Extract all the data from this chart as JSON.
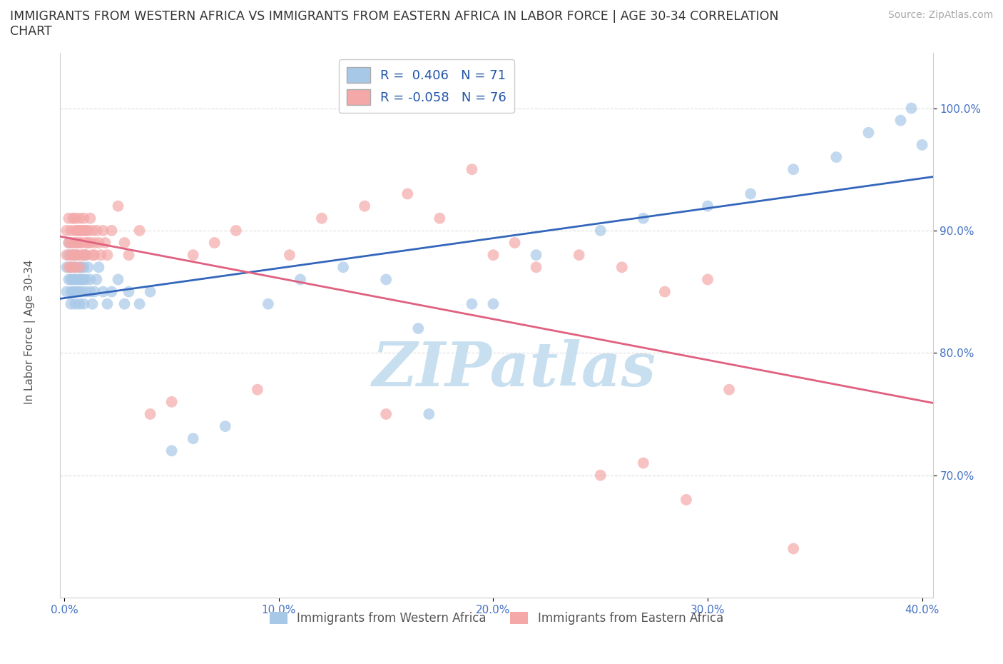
{
  "title_line1": "IMMIGRANTS FROM WESTERN AFRICA VS IMMIGRANTS FROM EASTERN AFRICA IN LABOR FORCE | AGE 30-34 CORRELATION",
  "title_line2": "CHART",
  "source_text": "Source: ZipAtlas.com",
  "ylabel": "In Labor Force | Age 30-34",
  "xlim": [
    -0.002,
    0.405
  ],
  "ylim": [
    0.6,
    1.045
  ],
  "xtick_vals": [
    0.0,
    0.1,
    0.2,
    0.3,
    0.4
  ],
  "xtick_labels": [
    "0.0%",
    "10.0%",
    "20.0%",
    "30.0%",
    "40.0%"
  ],
  "ytick_vals": [
    0.7,
    0.8,
    0.9,
    1.0
  ],
  "ytick_labels": [
    "70.0%",
    "80.0%",
    "90.0%",
    "100.0%"
  ],
  "western_R": 0.406,
  "western_N": 71,
  "eastern_R": -0.058,
  "eastern_N": 76,
  "blue_color": "#a8c8e8",
  "pink_color": "#f4a8a8",
  "blue_line_color": "#3366bb",
  "pink_line_color": "#e06080",
  "watermark": "ZIPatlas",
  "watermark_color": "#c8dff0",
  "background_color": "#ffffff",
  "grid_color": "#dddddd",
  "legend_label_western": "Immigrants from Western Africa",
  "legend_label_eastern": "Immigrants from Eastern Africa",
  "western_x": [
    0.001,
    0.001,
    0.002,
    0.002,
    0.002,
    0.003,
    0.003,
    0.003,
    0.003,
    0.004,
    0.004,
    0.004,
    0.004,
    0.005,
    0.005,
    0.005,
    0.005,
    0.005,
    0.006,
    0.006,
    0.006,
    0.007,
    0.007,
    0.007,
    0.007,
    0.008,
    0.008,
    0.008,
    0.009,
    0.009,
    0.009,
    0.01,
    0.01,
    0.01,
    0.011,
    0.012,
    0.012,
    0.013,
    0.014,
    0.015,
    0.016,
    0.018,
    0.02,
    0.022,
    0.025,
    0.028,
    0.03,
    0.035,
    0.04,
    0.05,
    0.06,
    0.075,
    0.095,
    0.11,
    0.13,
    0.15,
    0.17,
    0.2,
    0.22,
    0.25,
    0.27,
    0.3,
    0.32,
    0.34,
    0.36,
    0.375,
    0.39,
    0.395,
    0.4,
    0.165,
    0.19
  ],
  "western_y": [
    0.87,
    0.85,
    0.89,
    0.86,
    0.88,
    0.87,
    0.86,
    0.85,
    0.84,
    0.88,
    0.87,
    0.86,
    0.85,
    0.89,
    0.87,
    0.86,
    0.85,
    0.84,
    0.88,
    0.86,
    0.85,
    0.87,
    0.86,
    0.85,
    0.84,
    0.87,
    0.86,
    0.85,
    0.87,
    0.86,
    0.84,
    0.88,
    0.86,
    0.85,
    0.87,
    0.86,
    0.85,
    0.84,
    0.85,
    0.86,
    0.87,
    0.85,
    0.84,
    0.85,
    0.86,
    0.84,
    0.85,
    0.84,
    0.85,
    0.72,
    0.73,
    0.74,
    0.84,
    0.86,
    0.87,
    0.86,
    0.75,
    0.84,
    0.88,
    0.9,
    0.91,
    0.92,
    0.93,
    0.95,
    0.96,
    0.98,
    0.99,
    1.0,
    0.97,
    0.82,
    0.84
  ],
  "eastern_x": [
    0.001,
    0.001,
    0.002,
    0.002,
    0.002,
    0.003,
    0.003,
    0.003,
    0.003,
    0.004,
    0.004,
    0.004,
    0.005,
    0.005,
    0.005,
    0.005,
    0.006,
    0.006,
    0.006,
    0.007,
    0.007,
    0.007,
    0.007,
    0.008,
    0.008,
    0.008,
    0.009,
    0.009,
    0.009,
    0.01,
    0.01,
    0.01,
    0.011,
    0.011,
    0.012,
    0.012,
    0.013,
    0.013,
    0.014,
    0.014,
    0.015,
    0.016,
    0.017,
    0.018,
    0.019,
    0.02,
    0.022,
    0.025,
    0.028,
    0.03,
    0.035,
    0.04,
    0.05,
    0.06,
    0.07,
    0.08,
    0.09,
    0.105,
    0.12,
    0.14,
    0.15,
    0.16,
    0.175,
    0.19,
    0.2,
    0.21,
    0.22,
    0.24,
    0.26,
    0.28,
    0.31,
    0.34,
    0.3,
    0.25,
    0.27,
    0.29
  ],
  "eastern_y": [
    0.9,
    0.88,
    0.91,
    0.89,
    0.87,
    0.9,
    0.89,
    0.88,
    0.87,
    0.91,
    0.89,
    0.88,
    0.91,
    0.9,
    0.88,
    0.87,
    0.9,
    0.89,
    0.88,
    0.91,
    0.9,
    0.89,
    0.87,
    0.9,
    0.89,
    0.88,
    0.91,
    0.9,
    0.88,
    0.9,
    0.89,
    0.88,
    0.9,
    0.89,
    0.91,
    0.89,
    0.9,
    0.88,
    0.89,
    0.88,
    0.9,
    0.89,
    0.88,
    0.9,
    0.89,
    0.88,
    0.9,
    0.92,
    0.89,
    0.88,
    0.9,
    0.75,
    0.76,
    0.88,
    0.89,
    0.9,
    0.77,
    0.88,
    0.91,
    0.92,
    0.75,
    0.93,
    0.91,
    0.95,
    0.88,
    0.89,
    0.87,
    0.88,
    0.87,
    0.85,
    0.77,
    0.64,
    0.86,
    0.7,
    0.71,
    0.68
  ]
}
